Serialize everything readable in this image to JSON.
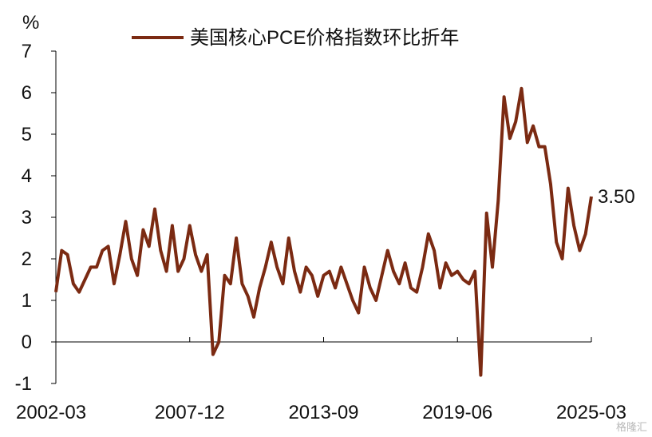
{
  "chart_data": {
    "type": "line",
    "unit": "%",
    "legend": "美国核心PCE价格指数环比折年",
    "legend_position": "top-center",
    "series": [
      {
        "name": "美国核心PCE价格指数环比折年",
        "color": "#7B2A12",
        "values": [
          1.2,
          2.2,
          2.1,
          1.4,
          1.2,
          1.5,
          1.8,
          1.8,
          2.2,
          2.3,
          1.4,
          2.1,
          2.9,
          2.0,
          1.6,
          2.7,
          2.3,
          3.2,
          2.2,
          1.7,
          2.8,
          1.7,
          2.0,
          2.8,
          2.1,
          1.7,
          2.1,
          -0.3,
          0.0,
          1.6,
          1.4,
          2.5,
          1.4,
          1.1,
          0.6,
          1.3,
          1.8,
          2.4,
          1.8,
          1.4,
          2.5,
          1.7,
          1.2,
          1.8,
          1.6,
          1.1,
          1.6,
          1.7,
          1.3,
          1.8,
          1.4,
          1.0,
          0.7,
          1.8,
          1.3,
          1.0,
          1.6,
          2.2,
          1.7,
          1.4,
          1.9,
          1.3,
          1.2,
          1.8,
          2.6,
          2.2,
          1.3,
          1.9,
          1.6,
          1.7,
          1.5,
          1.4,
          1.7,
          -0.8,
          3.1,
          1.8,
          3.4,
          5.9,
          4.9,
          5.3,
          6.1,
          4.8,
          5.2,
          4.7,
          4.7,
          3.8,
          2.4,
          2.0,
          3.7,
          2.8,
          2.2,
          2.6,
          3.5
        ]
      }
    ],
    "x_tick_labels": [
      "2002-03",
      "2007-12",
      "2013-09",
      "2019-06",
      "2025-03"
    ],
    "ylim": [
      -1,
      7
    ],
    "y_ticks": [
      -1,
      0,
      1,
      2,
      3,
      4,
      5,
      6,
      7
    ],
    "end_label": "3.50",
    "grid": false
  },
  "watermark": "格隆汇"
}
